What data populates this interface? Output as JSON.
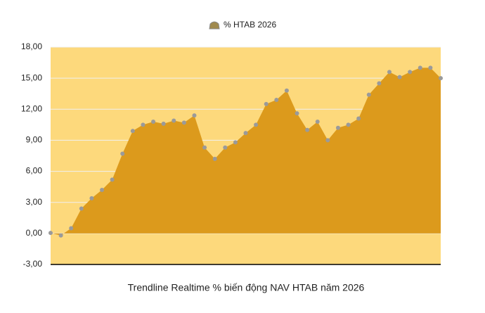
{
  "chart_data": {
    "type": "area",
    "title": "Trendline Realtime % biến động NAV HTAB năm 2026",
    "categories": [
      null,
      null,
      null,
      null,
      null,
      null,
      null,
      null,
      null,
      null,
      null,
      null,
      null,
      null,
      null,
      null,
      null,
      null,
      null,
      null,
      null,
      null,
      null,
      null,
      null,
      null,
      null,
      null,
      null,
      null,
      null,
      null,
      null,
      null,
      null,
      null,
      null,
      null,
      null
    ],
    "series": [
      {
        "name": "% HTAB 2026",
        "color": "#dc9a1c",
        "marker_color": "#9a9a9a",
        "values": [
          0.05,
          -0.2,
          0.5,
          2.4,
          3.4,
          4.2,
          5.2,
          7.7,
          9.9,
          10.5,
          10.8,
          10.6,
          10.9,
          10.7,
          11.4,
          8.3,
          7.2,
          8.3,
          8.8,
          9.7,
          10.5,
          12.5,
          12.9,
          13.8,
          11.6,
          10.0,
          10.8,
          9.0,
          10.2,
          10.5,
          11.1,
          13.4,
          14.5,
          15.6,
          15.1,
          15.6,
          16.0,
          16.0,
          15.0
        ]
      }
    ],
    "ylim": [
      -3,
      18
    ],
    "yticks": [
      {
        "value": -3,
        "label": "-3,00"
      },
      {
        "value": 0,
        "label": "0,00"
      },
      {
        "value": 3,
        "label": "3,00"
      },
      {
        "value": 6,
        "label": "6,00"
      },
      {
        "value": 9,
        "label": "9,00"
      },
      {
        "value": 12,
        "label": "12,00"
      },
      {
        "value": 15,
        "label": "15,00"
      },
      {
        "value": 18,
        "label": "18,00"
      }
    ],
    "grid": true,
    "legend": "top",
    "plot_background": "#fdd97c"
  }
}
